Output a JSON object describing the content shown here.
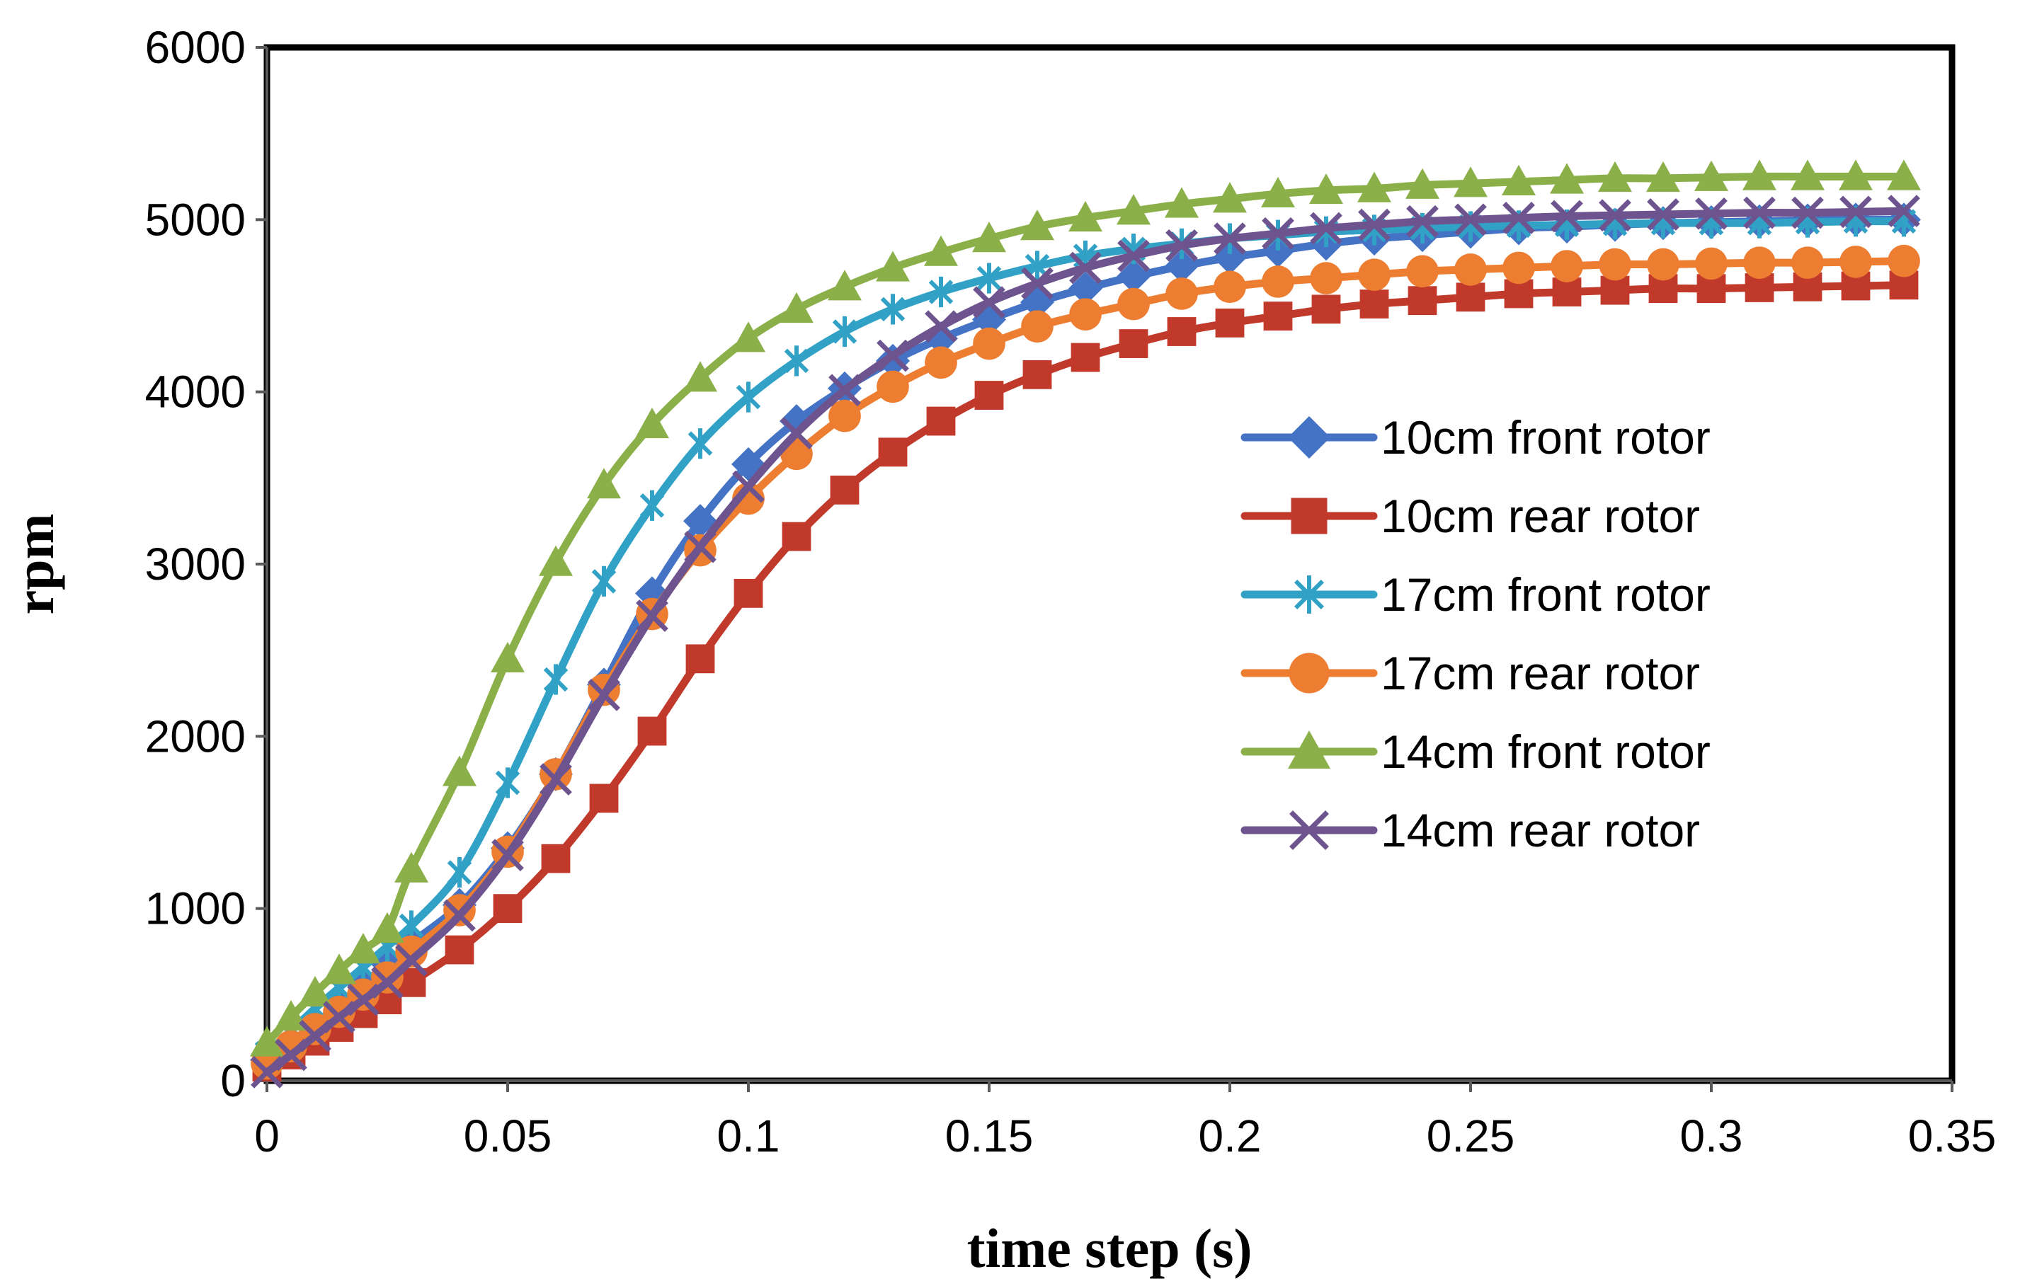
{
  "chart_data": {
    "type": "line",
    "title": "",
    "xlabel": "time step (s)",
    "ylabel": "rpm",
    "xlim": [
      0,
      0.35
    ],
    "ylim": [
      0,
      6000
    ],
    "xticks": [
      0,
      0.05,
      0.1,
      0.15,
      0.2,
      0.25,
      0.3,
      0.35
    ],
    "xtick_labels": [
      "0",
      "0.05",
      "0.1",
      "0.15",
      "0.2",
      "0.25",
      "0.3",
      "0.35"
    ],
    "yticks": [
      0,
      1000,
      2000,
      3000,
      4000,
      5000,
      6000
    ],
    "ytick_labels": [
      "0",
      "1000",
      "2000",
      "3000",
      "4000",
      "5000",
      "6000"
    ],
    "grid": false,
    "legend_position": "right",
    "x": [
      0,
      0.005,
      0.01,
      0.015,
      0.02,
      0.025,
      0.03,
      0.04,
      0.05,
      0.06,
      0.07,
      0.08,
      0.09,
      0.1,
      0.11,
      0.12,
      0.13,
      0.14,
      0.15,
      0.16,
      0.17,
      0.18,
      0.19,
      0.2,
      0.21,
      0.22,
      0.23,
      0.24,
      0.25,
      0.26,
      0.27,
      0.28,
      0.29,
      0.3,
      0.31,
      0.32,
      0.33,
      0.34
    ],
    "series": [
      {
        "name": "10cm front rotor",
        "color": "#4472C4",
        "marker": "diamond",
        "values": [
          120,
          220,
          330,
          440,
          560,
          680,
          800,
          1020,
          1350,
          1780,
          2300,
          2830,
          3250,
          3580,
          3830,
          4020,
          4180,
          4310,
          4420,
          4520,
          4600,
          4670,
          4730,
          4780,
          4820,
          4860,
          4890,
          4910,
          4930,
          4950,
          4960,
          4970,
          4980,
          4985,
          4990,
          4995,
          5000,
          5000
        ]
      },
      {
        "name": "10cm rear rotor",
        "color": "#C0392B",
        "marker": "square",
        "values": [
          80,
          150,
          230,
          310,
          390,
          470,
          570,
          760,
          1000,
          1290,
          1640,
          2030,
          2450,
          2830,
          3160,
          3430,
          3650,
          3830,
          3980,
          4100,
          4200,
          4280,
          4350,
          4400,
          4440,
          4480,
          4510,
          4530,
          4550,
          4570,
          4580,
          4590,
          4600,
          4600,
          4605,
          4610,
          4615,
          4620
        ]
      },
      {
        "name": "17cm front rotor",
        "color": "#31A2C6",
        "marker": "asterisk",
        "values": [
          160,
          290,
          420,
          540,
          660,
          780,
          900,
          1210,
          1730,
          2330,
          2900,
          3340,
          3700,
          3970,
          4180,
          4350,
          4480,
          4580,
          4660,
          4730,
          4790,
          4830,
          4860,
          4890,
          4910,
          4930,
          4940,
          4950,
          4960,
          4965,
          4970,
          4975,
          4980,
          4980,
          4980,
          4985,
          4990,
          4990
        ]
      },
      {
        "name": "17cm rear rotor",
        "color": "#ED7D31",
        "marker": "circle",
        "values": [
          100,
          200,
          300,
          400,
          500,
          600,
          750,
          990,
          1330,
          1780,
          2270,
          2710,
          3080,
          3380,
          3640,
          3860,
          4030,
          4170,
          4280,
          4380,
          4450,
          4510,
          4570,
          4610,
          4640,
          4660,
          4680,
          4700,
          4710,
          4720,
          4730,
          4740,
          4740,
          4745,
          4750,
          4750,
          4755,
          4760
        ]
      },
      {
        "name": "14cm front rotor",
        "color": "#8BB04A",
        "marker": "triangle",
        "values": [
          220,
          370,
          510,
          640,
          760,
          880,
          1230,
          1790,
          2450,
          3010,
          3460,
          3810,
          4080,
          4310,
          4480,
          4610,
          4720,
          4810,
          4890,
          4960,
          5010,
          5050,
          5090,
          5120,
          5150,
          5170,
          5180,
          5200,
          5210,
          5220,
          5230,
          5240,
          5240,
          5245,
          5250,
          5250,
          5250,
          5250
        ]
      },
      {
        "name": "14cm rear rotor",
        "color": "#6E548F",
        "marker": "x",
        "values": [
          50,
          150,
          260,
          370,
          470,
          570,
          700,
          960,
          1310,
          1750,
          2240,
          2700,
          3100,
          3450,
          3760,
          4010,
          4210,
          4380,
          4520,
          4630,
          4720,
          4790,
          4850,
          4890,
          4920,
          4950,
          4970,
          4990,
          5000,
          5010,
          5020,
          5025,
          5030,
          5035,
          5040,
          5040,
          5045,
          5050
        ]
      }
    ]
  }
}
